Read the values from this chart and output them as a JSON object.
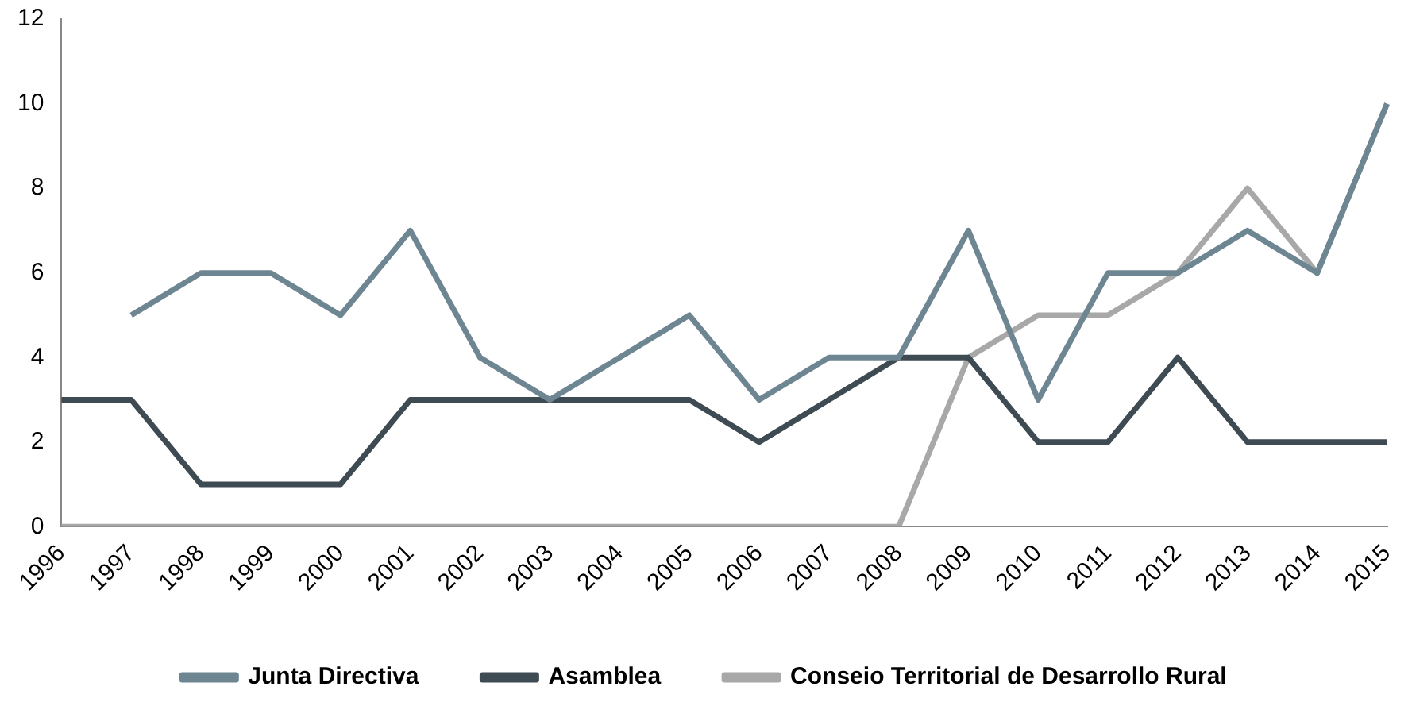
{
  "chart_data": {
    "type": "line",
    "categories": [
      "1996",
      "1997",
      "1998",
      "1999",
      "2000",
      "2001",
      "2002",
      "2003",
      "2004",
      "2005",
      "2006",
      "2007",
      "2008",
      "2009",
      "2010",
      "2011",
      "2012",
      "2013",
      "2014",
      "2015"
    ],
    "series": [
      {
        "name": "Junta Directiva",
        "color": "#6e8592",
        "values": [
          null,
          5,
          6,
          6,
          5,
          7,
          4,
          3,
          4,
          5,
          3,
          4,
          4,
          7,
          3,
          6,
          6,
          7,
          6,
          10
        ]
      },
      {
        "name": "Asamblea",
        "color": "#3f4b53",
        "values": [
          3,
          3,
          1,
          1,
          1,
          3,
          3,
          3,
          3,
          3,
          2,
          3,
          4,
          4,
          2,
          2,
          4,
          2,
          2,
          2
        ]
      },
      {
        "name": "Conseio Territorial de Desarrollo Rural",
        "color": "#a8a8a8",
        "values": [
          0,
          0,
          0,
          0,
          0,
          0,
          0,
          0,
          0,
          0,
          0,
          0,
          0,
          4,
          5,
          5,
          6,
          8,
          6,
          10
        ]
      }
    ],
    "ylim": [
      0,
      12
    ],
    "yticks": [
      0,
      2,
      4,
      6,
      8,
      10,
      12
    ],
    "grid": false,
    "legend": "bottom",
    "marker": "none",
    "line_style": "solid"
  }
}
